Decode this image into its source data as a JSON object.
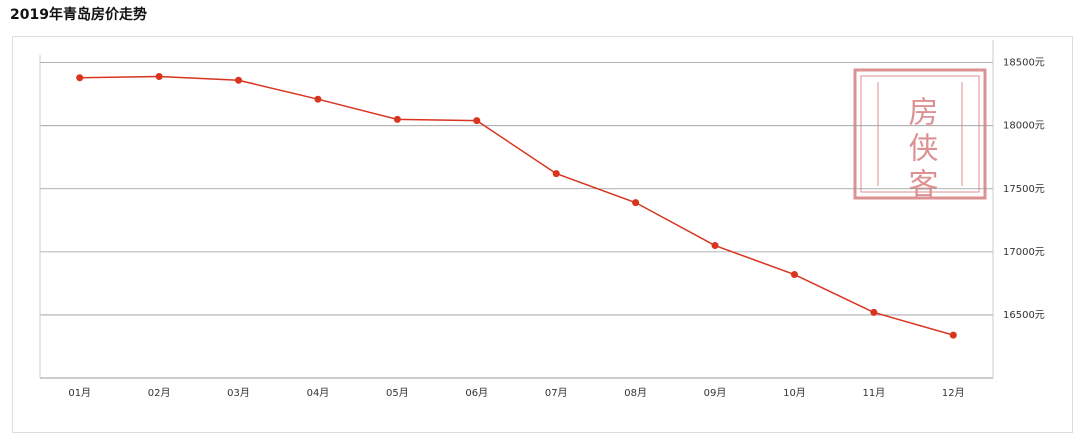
{
  "chart_data": {
    "type": "line",
    "title": "2019年青岛房价走势",
    "watermark": "房侠客",
    "categories": [
      "01月",
      "02月",
      "03月",
      "04月",
      "05月",
      "06月",
      "07月",
      "08月",
      "09月",
      "10月",
      "11月",
      "12月"
    ],
    "series": [
      {
        "color": "#d8341f",
        "values": [
          18380,
          18390,
          18360,
          18210,
          18050,
          18040,
          17620,
          17390,
          17050,
          16820,
          16520,
          16340
        ]
      }
    ],
    "ylim": [
      16000,
      18600
    ],
    "yticks": [
      {
        "value": 16500,
        "label": "16500元"
      },
      {
        "value": 17000,
        "label": "17000元"
      },
      {
        "value": 17500,
        "label": "17500元"
      },
      {
        "value": 18000,
        "label": "18000元"
      },
      {
        "value": 18500,
        "label": "18500元"
      }
    ],
    "grid": true
  }
}
